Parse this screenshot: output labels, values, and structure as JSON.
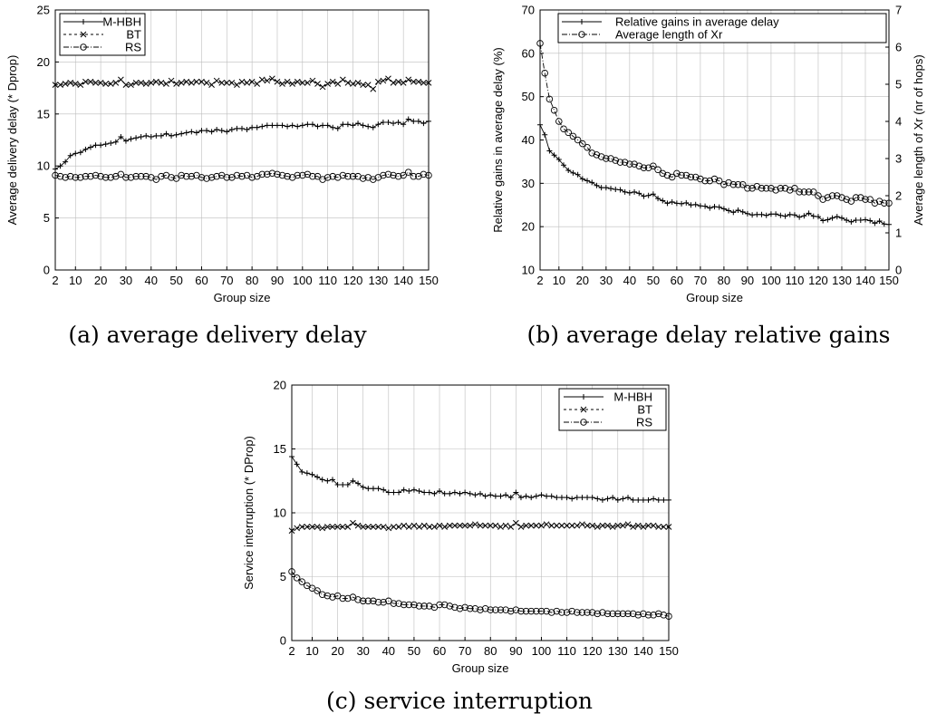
{
  "chart_data": [
    {
      "type": "line",
      "caption": "(a) average delivery delay",
      "xlabel": "Group size",
      "ylabel": "Average delivery delay (* Dprop)",
      "xlim": [
        2,
        150
      ],
      "ylim": [
        0,
        25
      ],
      "xticks": [
        2,
        10,
        20,
        30,
        40,
        50,
        60,
        70,
        80,
        90,
        100,
        110,
        120,
        130,
        140,
        150
      ],
      "yticks": [
        0,
        5,
        10,
        15,
        20,
        25
      ],
      "grid": true,
      "legend_position": "top-left",
      "x": [
        2,
        4,
        6,
        8,
        10,
        12,
        14,
        16,
        18,
        20,
        22,
        24,
        26,
        28,
        30,
        32,
        34,
        36,
        38,
        40,
        42,
        44,
        46,
        48,
        50,
        52,
        54,
        56,
        58,
        60,
        62,
        64,
        66,
        68,
        70,
        72,
        74,
        76,
        78,
        80,
        82,
        84,
        86,
        88,
        90,
        92,
        94,
        96,
        98,
        100,
        102,
        104,
        106,
        108,
        110,
        112,
        114,
        116,
        118,
        120,
        122,
        124,
        126,
        128,
        130,
        132,
        134,
        136,
        138,
        140,
        142,
        144,
        146,
        148,
        150
      ],
      "series": [
        {
          "name": "M-HBH",
          "marker": "plus",
          "dash": "",
          "values": [
            9.7,
            10.0,
            10.4,
            11.0,
            11.2,
            11.3,
            11.6,
            11.8,
            12.0,
            12.0,
            12.1,
            12.2,
            12.3,
            12.8,
            12.4,
            12.6,
            12.7,
            12.8,
            12.9,
            12.8,
            12.9,
            12.9,
            13.1,
            12.9,
            13.0,
            13.1,
            13.2,
            13.3,
            13.2,
            13.4,
            13.4,
            13.3,
            13.5,
            13.4,
            13.3,
            13.5,
            13.6,
            13.6,
            13.5,
            13.7,
            13.7,
            13.8,
            13.9,
            13.9,
            13.9,
            13.9,
            13.8,
            13.9,
            13.8,
            13.9,
            14.0,
            14.0,
            13.8,
            13.9,
            13.9,
            13.7,
            13.6,
            14.0,
            14.0,
            13.9,
            14.1,
            13.9,
            13.8,
            13.7,
            14.0,
            14.2,
            14.2,
            14.1,
            14.2,
            14.0,
            14.5,
            14.3,
            14.3,
            14.1,
            14.3
          ]
        },
        {
          "name": "BT",
          "marker": "cross",
          "dash": "3,3",
          "values": [
            17.8,
            17.8,
            17.9,
            18.0,
            17.9,
            17.8,
            18.1,
            18.1,
            18.0,
            18.0,
            17.9,
            17.9,
            18.0,
            18.3,
            17.8,
            17.8,
            18.0,
            18.0,
            17.9,
            18.0,
            18.1,
            18.0,
            17.9,
            18.2,
            17.9,
            18.0,
            18.1,
            18.0,
            18.1,
            18.1,
            18.0,
            17.8,
            18.2,
            18.0,
            18.0,
            18.0,
            17.8,
            18.1,
            18.0,
            18.1,
            17.9,
            18.3,
            18.2,
            18.4,
            18.1,
            17.9,
            18.1,
            17.9,
            18.1,
            18.0,
            18.0,
            18.2,
            17.9,
            17.6,
            17.9,
            18.1,
            17.9,
            18.3,
            18.0,
            17.9,
            18.0,
            17.8,
            17.8,
            17.4,
            18.1,
            18.2,
            18.4,
            18.0,
            18.1,
            18.0,
            18.3,
            18.1,
            18.1,
            18.0,
            18.0
          ]
        },
        {
          "name": "RS",
          "marker": "circle",
          "dash": "6,2,1,2",
          "values": [
            9.1,
            9.0,
            8.9,
            9.0,
            8.9,
            8.9,
            9.0,
            9.0,
            9.1,
            9.0,
            8.9,
            8.9,
            9.0,
            9.2,
            8.9,
            8.9,
            9.0,
            9.0,
            9.0,
            8.9,
            8.7,
            9.0,
            9.1,
            8.9,
            8.8,
            9.1,
            9.0,
            9.0,
            9.1,
            8.9,
            8.8,
            8.9,
            9.0,
            9.1,
            8.9,
            8.9,
            9.1,
            9.0,
            9.1,
            8.9,
            9.0,
            9.2,
            9.2,
            9.3,
            9.2,
            9.1,
            9.0,
            8.9,
            9.1,
            9.1,
            9.2,
            9.0,
            9.0,
            8.7,
            8.9,
            9.0,
            8.9,
            9.1,
            9.0,
            9.0,
            9.0,
            8.8,
            8.9,
            8.7,
            8.9,
            9.1,
            9.2,
            9.1,
            9.0,
            9.1,
            9.4,
            9.0,
            9.0,
            9.2,
            9.1
          ]
        }
      ]
    },
    {
      "type": "line",
      "caption": "(b) average delay relative gains",
      "xlabel": "Group size",
      "ylabel": "Relative gains in average delay (%)",
      "ylabel_right": "Average length of Xr (nr of hops)",
      "xlim": [
        2,
        150
      ],
      "ylim": [
        10,
        70
      ],
      "ylim_right": [
        0,
        7
      ],
      "xticks": [
        2,
        10,
        20,
        30,
        40,
        50,
        60,
        70,
        80,
        90,
        100,
        110,
        120,
        130,
        140,
        150
      ],
      "xtick_labels": [
        "2",
        "10",
        "20",
        "30",
        "40",
        "50",
        "60",
        "70",
        "80",
        "90",
        "100",
        "110",
        "120",
        "130",
        "140",
        "150"
      ],
      "yticks": [
        10,
        20,
        30,
        40,
        50,
        60,
        70
      ],
      "yticks_right": [
        0,
        1,
        2,
        3,
        4,
        5,
        6,
        7
      ],
      "grid": true,
      "legend_position": "top-right",
      "x": [
        2,
        4,
        6,
        8,
        10,
        12,
        14,
        16,
        18,
        20,
        22,
        24,
        26,
        28,
        30,
        32,
        34,
        36,
        38,
        40,
        42,
        44,
        46,
        48,
        50,
        52,
        54,
        56,
        58,
        60,
        62,
        64,
        66,
        68,
        70,
        72,
        74,
        76,
        78,
        80,
        82,
        84,
        86,
        88,
        90,
        92,
        94,
        96,
        98,
        100,
        102,
        104,
        106,
        108,
        110,
        112,
        114,
        116,
        118,
        120,
        122,
        124,
        126,
        128,
        130,
        132,
        134,
        136,
        138,
        140,
        142,
        144,
        146,
        148,
        150
      ],
      "series": [
        {
          "name": "Relative gains in average delay",
          "axis": "left",
          "marker": "plus",
          "dash": "",
          "values": [
            43.5,
            41.2,
            37.5,
            36.5,
            35.5,
            34.2,
            33.0,
            32.4,
            32.0,
            31.0,
            30.6,
            30.2,
            29.5,
            29.0,
            29.0,
            28.8,
            28.6,
            28.5,
            28.0,
            27.8,
            28.0,
            27.7,
            27.0,
            27.2,
            27.5,
            26.5,
            26.0,
            25.4,
            25.7,
            25.4,
            25.3,
            25.5,
            25.0,
            25.1,
            24.8,
            24.7,
            24.3,
            24.6,
            24.5,
            24.1,
            23.7,
            23.3,
            23.8,
            23.4,
            23.0,
            22.7,
            22.8,
            22.8,
            22.6,
            22.9,
            22.9,
            22.6,
            22.4,
            22.8,
            22.7,
            22.2,
            22.5,
            23.1,
            22.4,
            22.3,
            21.4,
            21.6,
            22.0,
            22.3,
            22.0,
            21.5,
            21.1,
            21.5,
            21.5,
            21.6,
            21.4,
            20.8,
            21.3,
            20.6,
            20.5
          ]
        },
        {
          "name": "Average length of Xr",
          "axis": "right",
          "marker": "circle",
          "dash": "6,2,1,2",
          "values": [
            6.1,
            5.3,
            4.6,
            4.3,
            4.0,
            3.8,
            3.7,
            3.6,
            3.5,
            3.4,
            3.3,
            3.15,
            3.1,
            3.05,
            3.0,
            3.0,
            2.95,
            2.9,
            2.9,
            2.85,
            2.85,
            2.8,
            2.75,
            2.75,
            2.8,
            2.7,
            2.6,
            2.55,
            2.5,
            2.6,
            2.55,
            2.55,
            2.5,
            2.5,
            2.45,
            2.4,
            2.4,
            2.45,
            2.4,
            2.3,
            2.35,
            2.3,
            2.3,
            2.3,
            2.2,
            2.2,
            2.25,
            2.2,
            2.2,
            2.2,
            2.15,
            2.2,
            2.2,
            2.15,
            2.2,
            2.1,
            2.1,
            2.1,
            2.1,
            2.0,
            1.9,
            1.95,
            2.0,
            2.0,
            1.95,
            1.9,
            1.85,
            1.95,
            1.95,
            1.9,
            1.9,
            1.8,
            1.85,
            1.8,
            1.8
          ]
        }
      ]
    },
    {
      "type": "line",
      "caption": "(c) service interruption",
      "xlabel": "Group size",
      "ylabel": "Service interruption (* DProp)",
      "xlim": [
        2,
        150
      ],
      "ylim": [
        0,
        20
      ],
      "xticks": [
        2,
        10,
        20,
        30,
        40,
        50,
        60,
        70,
        80,
        90,
        100,
        110,
        120,
        130,
        140,
        150
      ],
      "yticks": [
        0,
        5,
        10,
        15,
        20
      ],
      "grid": true,
      "legend_position": "top-right",
      "x": [
        2,
        4,
        6,
        8,
        10,
        12,
        14,
        16,
        18,
        20,
        22,
        24,
        26,
        28,
        30,
        32,
        34,
        36,
        38,
        40,
        42,
        44,
        46,
        48,
        50,
        52,
        54,
        56,
        58,
        60,
        62,
        64,
        66,
        68,
        70,
        72,
        74,
        76,
        78,
        80,
        82,
        84,
        86,
        88,
        90,
        92,
        94,
        96,
        98,
        100,
        102,
        104,
        106,
        108,
        110,
        112,
        114,
        116,
        118,
        120,
        122,
        124,
        126,
        128,
        130,
        132,
        134,
        136,
        138,
        140,
        142,
        144,
        146,
        148,
        150
      ],
      "series": [
        {
          "name": "M-HBH",
          "marker": "plus",
          "dash": "",
          "values": [
            14.4,
            13.8,
            13.2,
            13.1,
            13.0,
            12.8,
            12.6,
            12.5,
            12.6,
            12.2,
            12.2,
            12.2,
            12.5,
            12.3,
            12.0,
            11.9,
            11.9,
            11.9,
            11.8,
            11.6,
            11.6,
            11.6,
            11.8,
            11.7,
            11.8,
            11.7,
            11.6,
            11.6,
            11.5,
            11.7,
            11.5,
            11.5,
            11.6,
            11.5,
            11.6,
            11.5,
            11.4,
            11.5,
            11.3,
            11.4,
            11.3,
            11.3,
            11.4,
            11.2,
            11.6,
            11.2,
            11.3,
            11.2,
            11.3,
            11.4,
            11.3,
            11.3,
            11.2,
            11.2,
            11.2,
            11.1,
            11.2,
            11.2,
            11.2,
            11.2,
            11.1,
            11.0,
            11.1,
            11.2,
            11.0,
            11.1,
            11.2,
            11.0,
            11.0,
            11.0,
            11.0,
            11.1,
            11.0,
            11.0,
            11.0
          ]
        },
        {
          "name": "BT",
          "marker": "cross",
          "dash": "3,3",
          "values": [
            8.6,
            8.8,
            8.9,
            8.9,
            8.9,
            8.9,
            8.8,
            8.9,
            8.9,
            8.9,
            8.9,
            8.9,
            9.2,
            9.0,
            8.9,
            8.9,
            8.9,
            8.9,
            8.9,
            8.8,
            8.9,
            8.9,
            9.0,
            8.9,
            9.0,
            8.9,
            9.0,
            8.9,
            8.9,
            9.0,
            8.9,
            9.0,
            9.0,
            9.0,
            9.0,
            9.0,
            9.1,
            9.0,
            9.0,
            9.0,
            9.0,
            8.9,
            9.0,
            8.9,
            9.2,
            8.9,
            9.0,
            9.0,
            9.0,
            9.0,
            9.1,
            9.0,
            9.0,
            9.0,
            9.0,
            9.0,
            9.0,
            9.1,
            9.0,
            9.0,
            8.9,
            9.0,
            9.0,
            8.9,
            9.0,
            9.0,
            9.1,
            8.9,
            9.0,
            8.9,
            9.0,
            9.0,
            8.9,
            8.9,
            8.9
          ]
        },
        {
          "name": "RS",
          "marker": "circle",
          "dash": "6,2,1,2",
          "values": [
            5.4,
            4.9,
            4.6,
            4.3,
            4.1,
            3.9,
            3.6,
            3.5,
            3.4,
            3.5,
            3.3,
            3.3,
            3.4,
            3.2,
            3.1,
            3.1,
            3.1,
            3.0,
            3.0,
            3.1,
            2.9,
            2.9,
            2.8,
            2.8,
            2.8,
            2.7,
            2.7,
            2.7,
            2.6,
            2.8,
            2.8,
            2.7,
            2.6,
            2.5,
            2.6,
            2.5,
            2.5,
            2.4,
            2.5,
            2.4,
            2.4,
            2.4,
            2.4,
            2.3,
            2.4,
            2.3,
            2.3,
            2.3,
            2.3,
            2.3,
            2.3,
            2.2,
            2.3,
            2.2,
            2.2,
            2.3,
            2.2,
            2.2,
            2.2,
            2.2,
            2.1,
            2.2,
            2.1,
            2.1,
            2.1,
            2.1,
            2.1,
            2.1,
            2.0,
            2.1,
            2.0,
            2.0,
            2.1,
            2.0,
            1.9
          ]
        }
      ]
    }
  ]
}
